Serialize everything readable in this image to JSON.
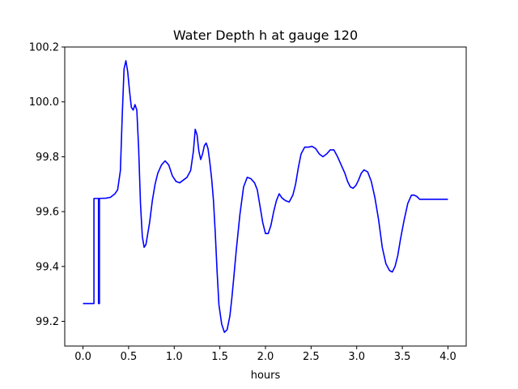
{
  "chart_data": {
    "type": "line",
    "title": "Water Depth h at gauge 120",
    "xlabel": "hours",
    "ylabel": "",
    "xlim": [
      -0.2,
      4.2
    ],
    "ylim": [
      99.11,
      100.2
    ],
    "xticks": [
      0.0,
      0.5,
      1.0,
      1.5,
      2.0,
      2.5,
      3.0,
      3.5,
      4.0
    ],
    "xtick_labels": [
      "0.0",
      "0.5",
      "1.0",
      "1.5",
      "2.0",
      "2.5",
      "3.0",
      "3.5",
      "4.0"
    ],
    "yticks": [
      99.2,
      99.4,
      99.6,
      99.8,
      100.0,
      100.2
    ],
    "ytick_labels": [
      "99.2",
      "99.4",
      "99.6",
      "99.8",
      "100.0",
      "100.2"
    ],
    "grid": false,
    "series": [
      {
        "color": "#0000ff",
        "x": [
          0.0,
          0.12,
          0.12,
          0.18,
          0.18,
          0.17,
          0.17,
          0.25,
          0.3,
          0.35,
          0.38,
          0.41,
          0.43,
          0.45,
          0.47,
          0.49,
          0.51,
          0.53,
          0.55,
          0.57,
          0.59,
          0.61,
          0.63,
          0.65,
          0.67,
          0.69,
          0.71,
          0.73,
          0.76,
          0.79,
          0.82,
          0.86,
          0.9,
          0.94,
          0.98,
          1.02,
          1.06,
          1.1,
          1.14,
          1.18,
          1.21,
          1.23,
          1.25,
          1.27,
          1.29,
          1.31,
          1.33,
          1.35,
          1.37,
          1.39,
          1.41,
          1.43,
          1.45,
          1.47,
          1.49,
          1.52,
          1.55,
          1.58,
          1.61,
          1.63,
          1.65,
          1.68,
          1.72,
          1.76,
          1.8,
          1.84,
          1.88,
          1.91,
          1.94,
          1.97,
          2.0,
          2.03,
          2.06,
          2.09,
          2.12,
          2.15,
          2.18,
          2.22,
          2.26,
          2.3,
          2.33,
          2.36,
          2.39,
          2.43,
          2.47,
          2.51,
          2.55,
          2.59,
          2.63,
          2.67,
          2.71,
          2.75,
          2.79,
          2.83,
          2.87,
          2.9,
          2.93,
          2.96,
          2.99,
          3.02,
          3.05,
          3.08,
          3.12,
          3.16,
          3.2,
          3.24,
          3.28,
          3.32,
          3.36,
          3.39,
          3.42,
          3.45,
          3.48,
          3.52,
          3.56,
          3.6,
          3.63,
          3.66,
          3.69,
          3.72,
          3.75,
          3.79,
          3.83,
          3.87,
          3.9,
          3.93,
          3.96,
          3.98,
          4.0
        ],
        "y": [
          99.265,
          99.265,
          99.648,
          99.648,
          99.265,
          99.265,
          99.648,
          99.649,
          99.652,
          99.665,
          99.68,
          99.75,
          99.95,
          100.12,
          100.15,
          100.11,
          100.04,
          99.98,
          99.97,
          99.99,
          99.97,
          99.83,
          99.63,
          99.51,
          99.47,
          99.48,
          99.52,
          99.56,
          99.64,
          99.7,
          99.74,
          99.77,
          99.785,
          99.77,
          99.73,
          99.71,
          99.705,
          99.715,
          99.725,
          99.75,
          99.82,
          99.9,
          99.88,
          99.82,
          99.79,
          99.81,
          99.84,
          99.85,
          99.83,
          99.78,
          99.72,
          99.64,
          99.52,
          99.38,
          99.26,
          99.19,
          99.16,
          99.17,
          99.22,
          99.28,
          99.35,
          99.46,
          99.59,
          99.69,
          99.725,
          99.72,
          99.705,
          99.68,
          99.62,
          99.56,
          99.52,
          99.52,
          99.55,
          99.6,
          99.64,
          99.665,
          99.65,
          99.64,
          99.635,
          99.66,
          99.7,
          99.76,
          99.81,
          99.835,
          99.835,
          99.838,
          99.83,
          99.81,
          99.8,
          99.81,
          99.825,
          99.825,
          99.8,
          99.77,
          99.74,
          99.71,
          99.69,
          99.685,
          99.695,
          99.715,
          99.74,
          99.752,
          99.745,
          99.71,
          99.65,
          99.57,
          99.47,
          99.41,
          99.385,
          99.38,
          99.4,
          99.44,
          99.5,
          99.57,
          99.63,
          99.66,
          99.66,
          99.655,
          99.645,
          99.645,
          99.645,
          99.645,
          99.645,
          99.645,
          99.645,
          99.645,
          99.645,
          99.645,
          99.645
        ]
      }
    ]
  }
}
